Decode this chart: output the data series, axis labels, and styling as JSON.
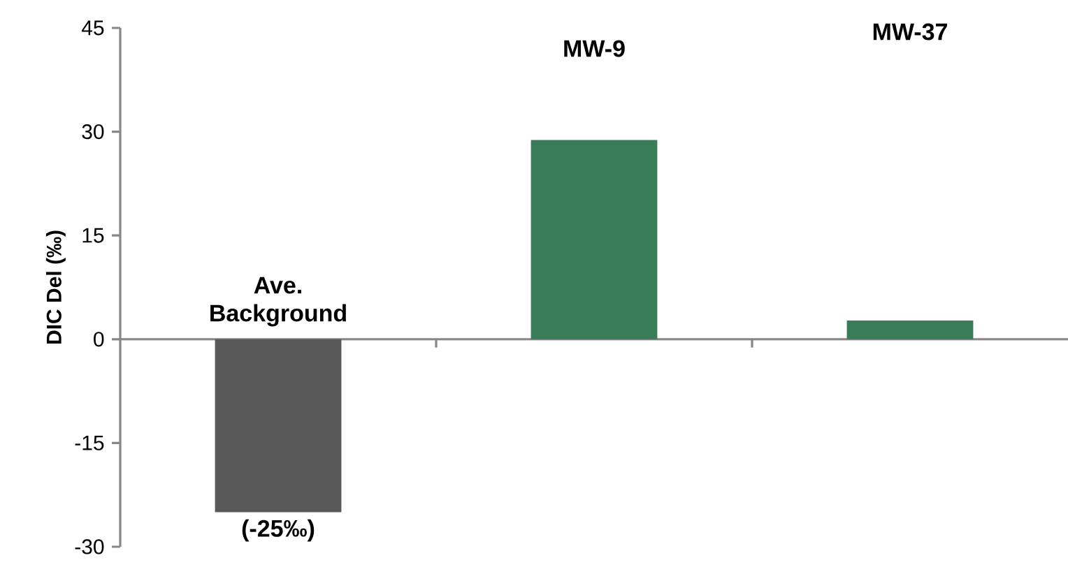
{
  "chart_data": {
    "type": "bar",
    "ylabel": "DIC Del (‰)",
    "categories": [
      null,
      null,
      null
    ],
    "values": [
      -25,
      28.8,
      2.7
    ],
    "colors": [
      "#595959",
      "#387c58",
      "#387c58"
    ],
    "value_labels": [
      "(-25‰)",
      null,
      null
    ],
    "annotations": [
      "Ave. Background",
      "MW-9",
      "MW-37"
    ],
    "ylim": [
      -30,
      45
    ],
    "yticks": [
      -30,
      -15,
      0,
      15,
      30,
      45
    ]
  }
}
